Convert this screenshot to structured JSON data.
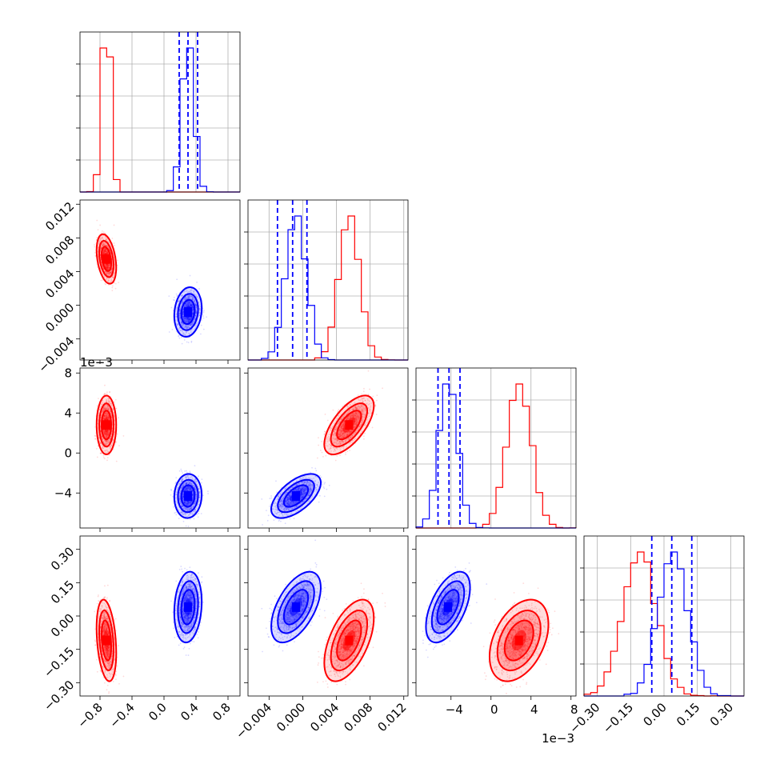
{
  "chart_data": {
    "type": "scatter",
    "title": "",
    "description_of_layout": "",
    "series": [
      {
        "color": "#ff0000"
      },
      {
        "color": "#0000ff"
      }
    ],
    "params": [
      {
        "ticks": [
          -0.8,
          -0.4,
          0.0,
          0.4,
          0.8
        ],
        "tick_labels": [
          "−0.8",
          "−0.4",
          "0.0",
          "0.4",
          "0.8"
        ],
        "range": [
          -1.05,
          0.95
        ]
      },
      {
        "ticks": [
          -0.004,
          0.0,
          0.004,
          0.008,
          0.012
        ],
        "tick_labels": [
          "−0.004",
          "0.000",
          "0.004",
          "0.008",
          "0.012"
        ],
        "range": [
          -0.0065,
          0.0125
        ]
      },
      {
        "ticks": [
          -4,
          0,
          4,
          8
        ],
        "tick_labels": [
          "−4",
          "0",
          "4",
          "8"
        ],
        "range": [
          -7.5,
          8.5
        ],
        "offset_label": "1e−3"
      },
      {
        "ticks": [
          -0.3,
          -0.15,
          0.0,
          0.15,
          0.3
        ],
        "tick_labels": [
          "−0.30",
          "−0.15",
          "0.00",
          "0.15",
          "0.30"
        ],
        "range": [
          -0.36,
          0.36
        ]
      }
    ],
    "red_means": [
      -0.72,
      0.0055,
      2.8,
      -0.11
    ],
    "red_sds": [
      0.05,
      0.0012,
      1.2,
      0.075
    ],
    "blue_means": [
      0.3,
      -0.0008,
      -4.3,
      0.04
    ],
    "blue_sds": [
      0.07,
      0.0012,
      0.9,
      0.065
    ],
    "blue_quantile_lines": [
      [
        0.19,
        0.3,
        0.42
      ],
      [
        -0.003,
        -0.0012,
        0.0005
      ],
      [
        -5.3,
        -4.2,
        -3.1
      ],
      [
        -0.055,
        0.035,
        0.125
      ]
    ]
  }
}
